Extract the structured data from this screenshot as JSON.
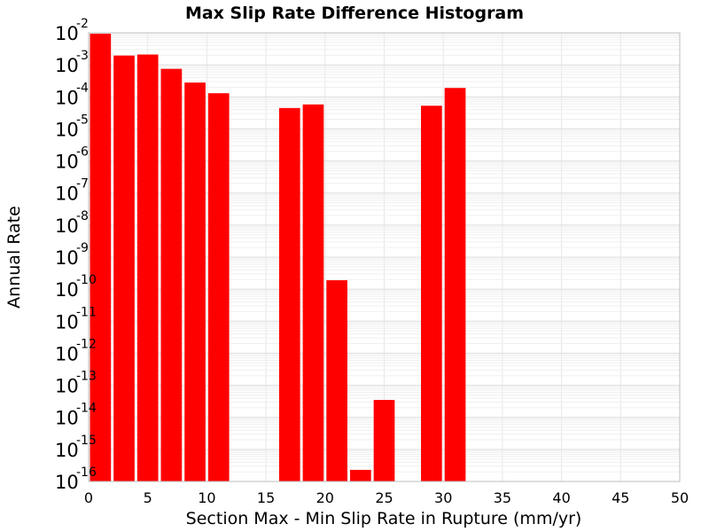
{
  "chart_data": {
    "type": "bar",
    "title": "Max Slip Rate Difference Histogram",
    "xlabel": "Section Max - Min Slip Rate in Rupture (mm/yr)",
    "ylabel": "Annual Rate",
    "xlim": [
      0,
      50
    ],
    "ylim": [
      1e-16,
      0.01
    ],
    "yscale": "log",
    "bin_width": 2,
    "grid": true,
    "bar_color": "#ff0000",
    "x_ticks": [
      "0",
      "5",
      "10",
      "15",
      "20",
      "25",
      "30",
      "35",
      "40",
      "45",
      "50"
    ],
    "y_tick_base": "10",
    "y_tick_exponents": [
      "-2",
      "-3",
      "-4",
      "-5",
      "-6",
      "-7",
      "-8",
      "-9",
      "-10",
      "-11",
      "-12",
      "-13",
      "-14",
      "-15",
      "-16"
    ],
    "bars": [
      {
        "x": 1,
        "value": 0.0094
      },
      {
        "x": 3,
        "value": 0.00195
      },
      {
        "x": 5,
        "value": 0.0021
      },
      {
        "x": 7,
        "value": 0.00075
      },
      {
        "x": 9,
        "value": 0.00028
      },
      {
        "x": 11,
        "value": 0.00013
      },
      {
        "x": 17,
        "value": 4.5e-05
      },
      {
        "x": 19,
        "value": 5.8e-05
      },
      {
        "x": 21,
        "value": 1.9e-10
      },
      {
        "x": 23,
        "value": 2.3e-16
      },
      {
        "x": 25,
        "value": 3.5e-14
      },
      {
        "x": 29,
        "value": 5.3e-05
      },
      {
        "x": 31,
        "value": 0.00019
      }
    ]
  }
}
